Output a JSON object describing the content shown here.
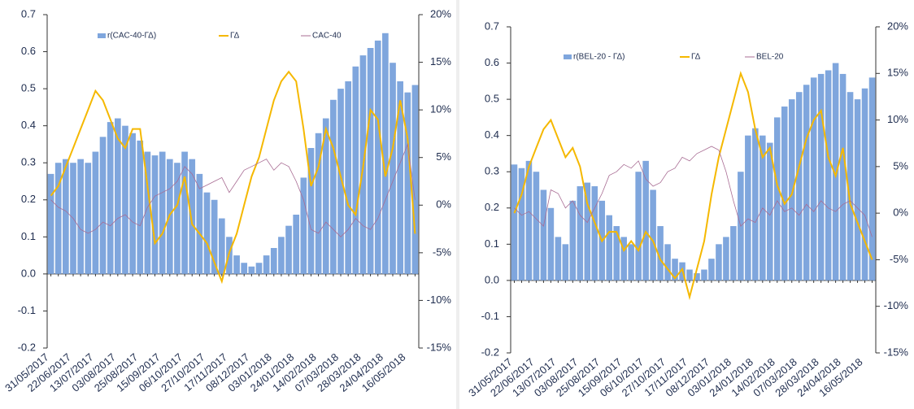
{
  "chart_data": [
    {
      "type": "bar",
      "categories": [
        "31/05/2017",
        null,
        null,
        "22/06/2017",
        null,
        null,
        "13/07/2017",
        null,
        null,
        "03/08/2017",
        null,
        null,
        "25/08/2017",
        null,
        null,
        "15/09/2017",
        null,
        null,
        "06/10/2017",
        null,
        null,
        "27/10/2017",
        null,
        null,
        "17/11/2017",
        null,
        null,
        "08/12/2017",
        null,
        null,
        "03/01/2018",
        null,
        null,
        "24/01/2018",
        null,
        null,
        "14/02/2018",
        null,
        null,
        "07/03/2018",
        null,
        null,
        "28/03/2018",
        null,
        null,
        "24/04/2018",
        null,
        null,
        "16/05/2018",
        null
      ],
      "ylim": [
        -0.2,
        0.7
      ],
      "yticks": [
        -0.2,
        -0.1,
        {
          "value": 0,
          "label": "0.0"
        },
        0.1,
        0.2,
        0.3,
        0.4,
        0.5,
        0.6,
        0.7
      ],
      "y2lim": [
        -15,
        20
      ],
      "y2ticks": [
        {
          "value": -15,
          "label": "-15%"
        },
        {
          "value": -10,
          "label": "-10%"
        },
        {
          "value": -5,
          "label": "-5%"
        },
        {
          "value": 0,
          "label": "0%"
        },
        {
          "value": 5,
          "label": "5%"
        },
        {
          "value": 10,
          "label": "10%"
        },
        {
          "value": 15,
          "label": "15%"
        },
        {
          "value": 20,
          "label": "20%"
        }
      ],
      "series": [
        {
          "name": "r(CAC-40-ΓΔ)",
          "type": "bar",
          "color": "#7fa6dd",
          "values": [
            0.27,
            0.3,
            0.31,
            0.3,
            0.31,
            0.3,
            0.33,
            0.37,
            0.41,
            0.42,
            0.4,
            0.38,
            0.36,
            0.33,
            0.32,
            0.33,
            0.31,
            0.3,
            0.33,
            0.31,
            0.27,
            0.22,
            0.2,
            0.15,
            0.1,
            0.05,
            0.03,
            0.02,
            0.03,
            0.05,
            0.07,
            0.1,
            0.13,
            0.16,
            0.26,
            0.34,
            0.38,
            0.42,
            0.47,
            0.5,
            0.52,
            0.56,
            0.59,
            0.61,
            0.63,
            0.65,
            0.57,
            0.52,
            0.49,
            0.51
          ]
        },
        {
          "name": "ΓΔ",
          "type": "line",
          "axis": "y2",
          "color": "#f5b800",
          "values": [
            1,
            2,
            4,
            6,
            8,
            10,
            12,
            11,
            9,
            7,
            6,
            8,
            8,
            2,
            -4,
            -3,
            -1,
            0,
            3,
            -2,
            -3,
            -4,
            -6,
            -8,
            -5,
            -3,
            0,
            3,
            5,
            8,
            11,
            13,
            14,
            13,
            8,
            2,
            4,
            8,
            6,
            3,
            0,
            -1,
            4,
            10,
            9,
            3,
            6,
            11,
            7,
            -3
          ]
        },
        {
          "name": "CAC-40",
          "type": "line",
          "color": "#a86c93",
          "values": [
            0.2,
            0.18,
            0.17,
            0.15,
            0.12,
            0.11,
            0.12,
            0.14,
            0.13,
            0.15,
            0.16,
            0.14,
            0.13,
            0.18,
            0.21,
            0.22,
            0.23,
            0.25,
            0.29,
            0.27,
            0.23,
            0.24,
            0.25,
            0.26,
            0.22,
            0.25,
            0.28,
            0.29,
            0.3,
            0.31,
            0.28,
            0.3,
            0.29,
            0.25,
            0.2,
            0.12,
            0.11,
            0.14,
            0.12,
            0.1,
            0.12,
            0.15,
            0.13,
            0.12,
            0.15,
            0.2,
            0.25,
            0.3,
            0.35,
            0.2
          ]
        }
      ]
    },
    {
      "type": "bar",
      "categories": [
        "31/05/2017",
        null,
        null,
        "22/06/2017",
        null,
        null,
        "13/07/2017",
        null,
        null,
        "03/08/2017",
        null,
        null,
        "25/08/2017",
        null,
        null,
        "15/09/2017",
        null,
        null,
        "06/10/2017",
        null,
        null,
        "27/10/2017",
        null,
        null,
        "17/11/2017",
        null,
        null,
        "08/12/2017",
        null,
        null,
        "03/01/2018",
        null,
        null,
        "24/01/2018",
        null,
        null,
        "14/02/2018",
        null,
        null,
        "07/03/2018",
        null,
        null,
        "28/03/2018",
        null,
        null,
        "24/04/2018",
        null,
        null,
        "16/05/2018",
        null
      ],
      "ylim": [
        -0.2,
        0.7
      ],
      "yticks": [
        -0.2,
        -0.1,
        {
          "value": 0,
          "label": "0.0"
        },
        0.1,
        0.2,
        0.3,
        0.4,
        0.5,
        0.6,
        0.7
      ],
      "y2lim": [
        -15,
        20
      ],
      "y2ticks": [
        {
          "value": -15,
          "label": "-15%"
        },
        {
          "value": -10,
          "label": "-10%"
        },
        {
          "value": -5,
          "label": "-5%"
        },
        {
          "value": 0,
          "label": "0%"
        },
        {
          "value": 5,
          "label": "5%"
        },
        {
          "value": 10,
          "label": "10%"
        },
        {
          "value": 15,
          "label": "15%"
        },
        {
          "value": 20,
          "label": "20%"
        }
      ],
      "series": [
        {
          "name": "r(BEL-20 - ΓΔ)",
          "type": "bar",
          "color": "#7fa6dd",
          "values": [
            0.32,
            0.31,
            0.33,
            0.3,
            0.25,
            0.2,
            0.12,
            0.1,
            0.22,
            0.26,
            0.27,
            0.26,
            0.22,
            0.18,
            0.15,
            0.12,
            0.1,
            0.3,
            0.33,
            0.25,
            0.15,
            0.1,
            0.06,
            0.05,
            0.03,
            0.02,
            0.03,
            0.06,
            0.1,
            0.12,
            0.15,
            0.3,
            0.4,
            0.42,
            0.4,
            0.38,
            0.45,
            0.48,
            0.5,
            0.52,
            0.54,
            0.56,
            0.57,
            0.58,
            0.6,
            0.57,
            0.52,
            0.5,
            0.53,
            0.56
          ]
        },
        {
          "name": "ΓΔ",
          "type": "line",
          "axis": "y2",
          "color": "#f5b800",
          "values": [
            0,
            2,
            5,
            7,
            9,
            10,
            8,
            6,
            7,
            5,
            1,
            -1,
            -3,
            -2,
            -2,
            -4,
            -3,
            -4,
            -2,
            -3,
            -5,
            -6,
            -7,
            -6,
            -9,
            -6,
            -3,
            2,
            6,
            9,
            12,
            15,
            13,
            9,
            6,
            7,
            3,
            1,
            2,
            5,
            8,
            10,
            11,
            6,
            4,
            7,
            1,
            -1,
            -3,
            -5
          ]
        },
        {
          "name": "BEL-20",
          "type": "line",
          "color": "#a86c93",
          "values": [
            0.2,
            0.18,
            0.19,
            0.17,
            0.15,
            0.25,
            0.24,
            0.2,
            0.22,
            0.18,
            0.16,
            0.2,
            0.24,
            0.29,
            0.3,
            0.32,
            0.31,
            0.33,
            0.28,
            0.26,
            0.27,
            0.3,
            0.31,
            0.34,
            0.33,
            0.35,
            0.36,
            0.37,
            0.36,
            0.3,
            0.22,
            0.15,
            0.17,
            0.16,
            0.2,
            0.18,
            0.22,
            0.19,
            0.2,
            0.18,
            0.21,
            0.19,
            0.22,
            0.2,
            0.19,
            0.21,
            0.22,
            0.2,
            0.18,
            0.12
          ]
        }
      ]
    }
  ]
}
